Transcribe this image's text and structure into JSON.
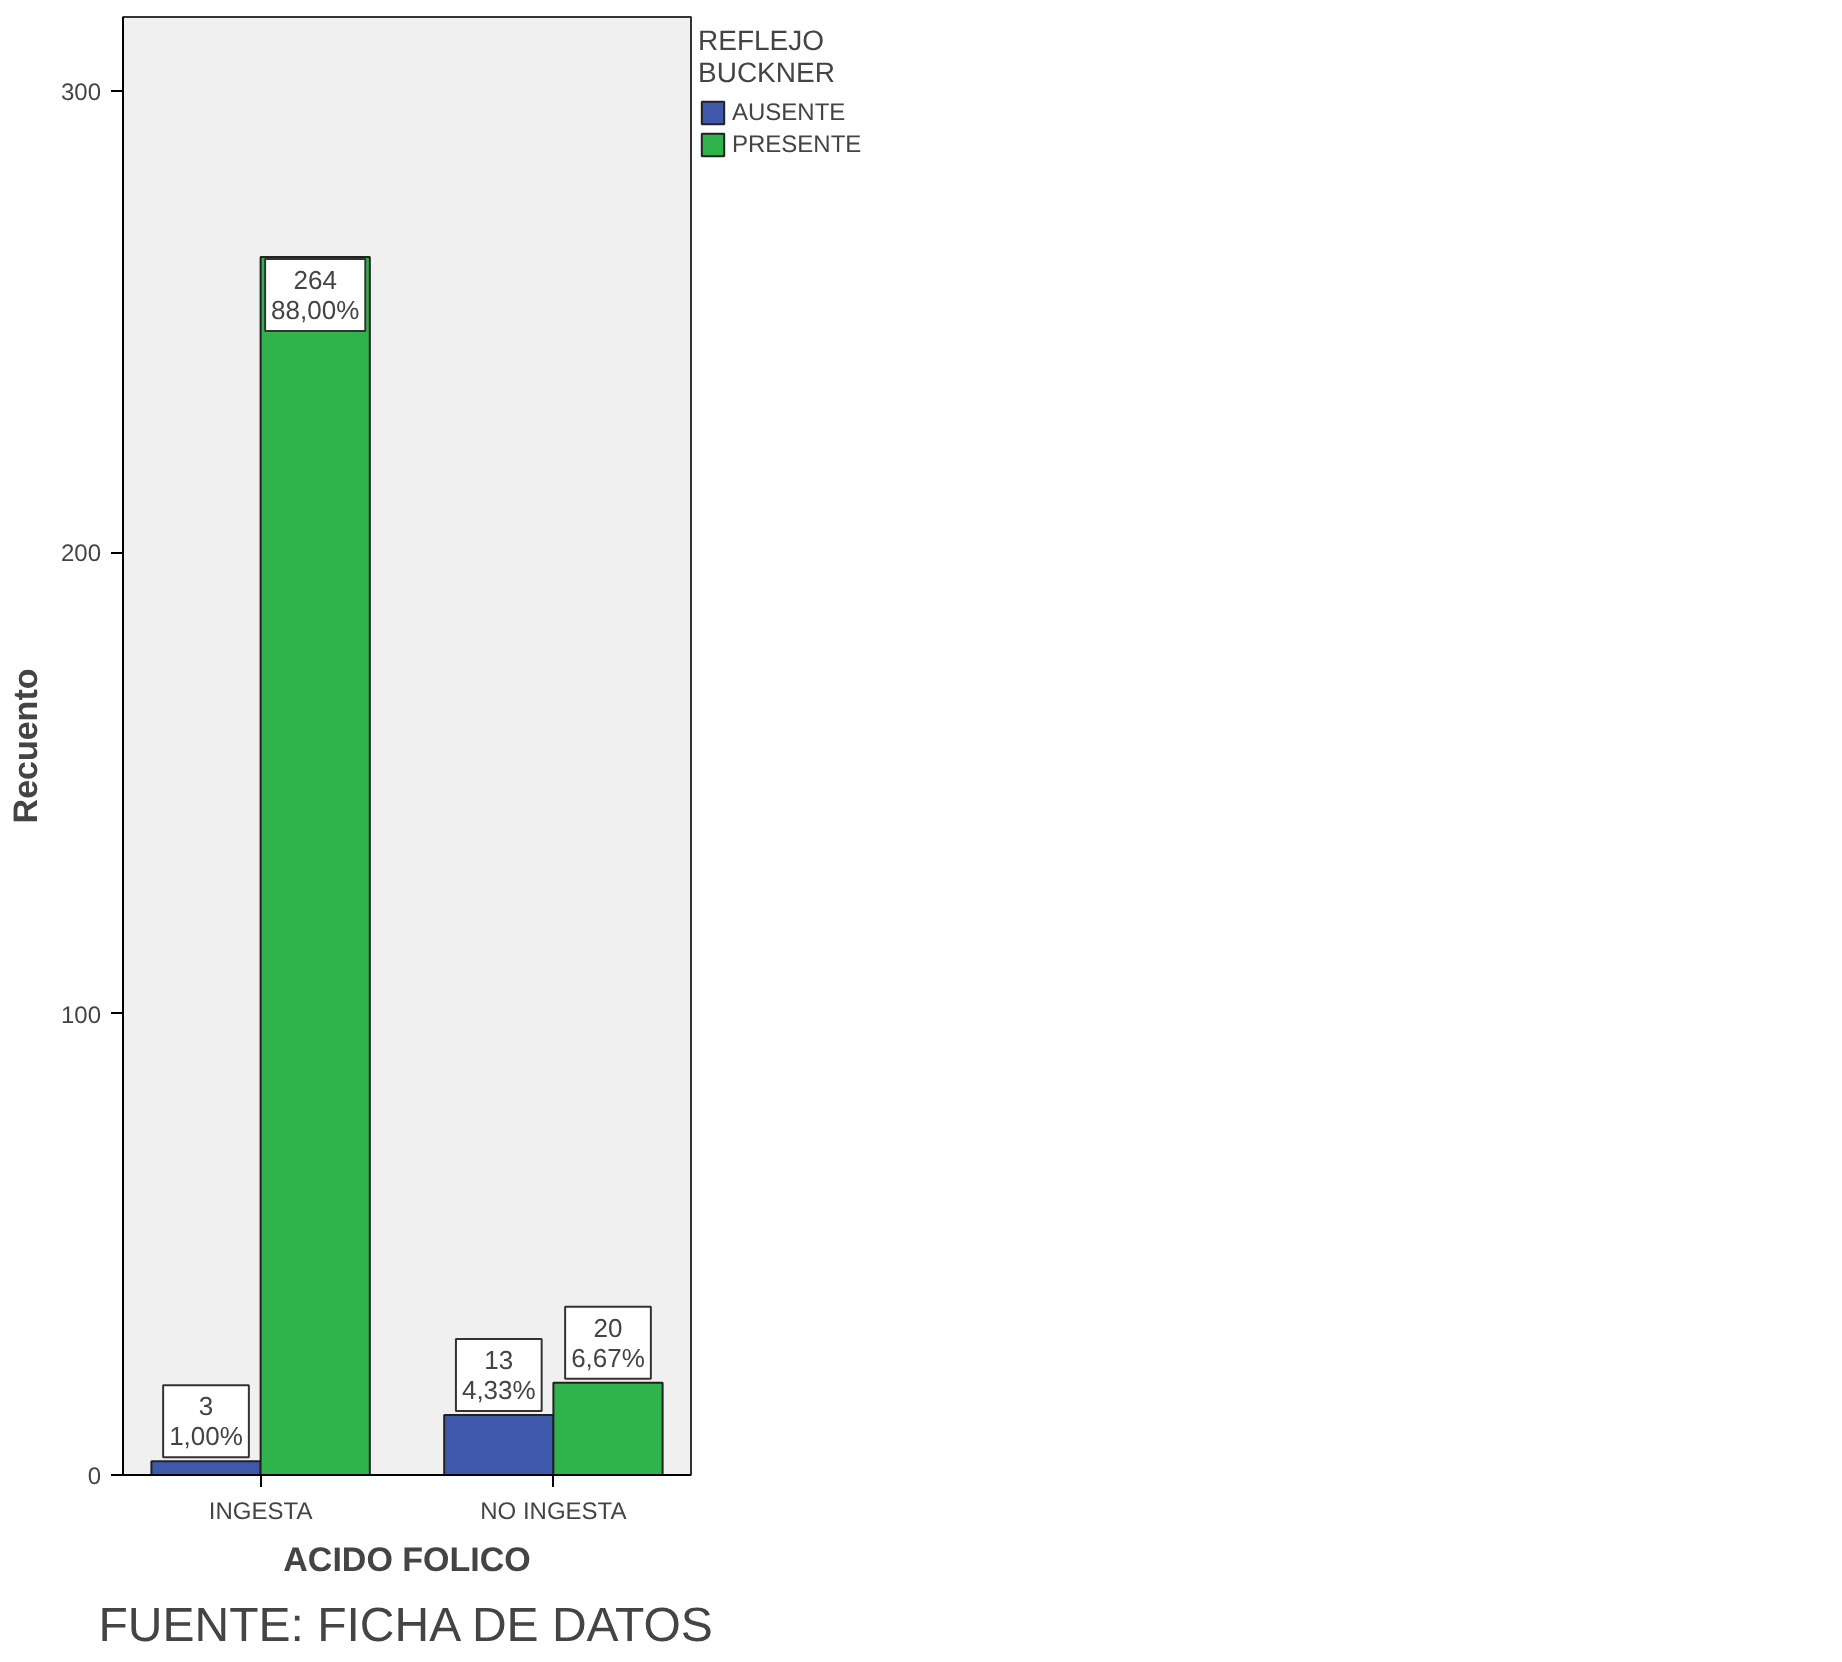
{
  "chart_data": {
    "type": "bar",
    "xlabel": "ACIDO FOLICO",
    "ylabel": "Recuento",
    "legend_title": "REFLEJO\nBUCKNER",
    "categories": [
      "INGESTA",
      "NO INGESTA"
    ],
    "series": [
      {
        "name": "AUSENTE",
        "color": "#3e58ac",
        "values": [
          3,
          13
        ],
        "value_labels": [
          "3\n1,00%",
          "13\n4,33%"
        ]
      },
      {
        "name": "PRESENTE",
        "color": "#2fb34a",
        "values": [
          264,
          20
        ],
        "value_labels": [
          "264\n88,00%",
          "20\n6,67%"
        ]
      }
    ],
    "ylim": [
      0,
      316
    ],
    "yticks": [
      0,
      100,
      200,
      300
    ],
    "grid": false,
    "legend": "top right",
    "annotations": [
      "FUENTE: FICHA DE DATOS"
    ]
  }
}
